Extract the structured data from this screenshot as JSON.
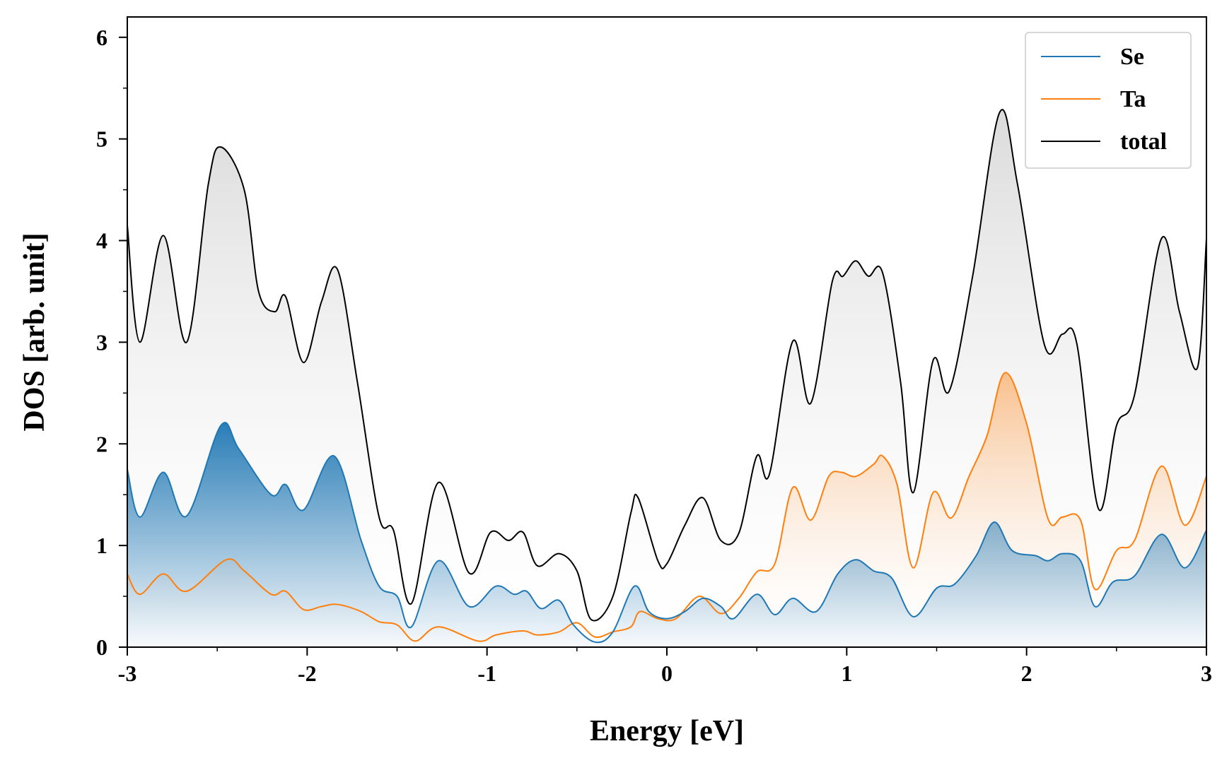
{
  "chart_data": {
    "type": "area",
    "title": "",
    "xlabel": "Energy [eV]",
    "ylabel": "DOS [arb. unit]",
    "xlim": [
      -3,
      3
    ],
    "ylim": [
      0,
      6.2
    ],
    "xticks": [
      -3,
      -2,
      -1,
      0,
      1,
      2,
      3
    ],
    "xtick_labels": [
      "-3",
      "-2",
      "-1",
      "0",
      "1",
      "2",
      "3"
    ],
    "yticks": [
      0,
      1,
      2,
      3,
      4,
      5,
      6
    ],
    "ytick_labels": [
      "0",
      "1",
      "2",
      "3",
      "4",
      "5",
      "6"
    ],
    "grid": false,
    "legend": "top-right",
    "series": [
      {
        "name": "Se",
        "color": "#1f77b4",
        "fill": "gradient",
        "points": [
          [
            -3.0,
            1.75
          ],
          [
            -2.93,
            1.28
          ],
          [
            -2.8,
            1.72
          ],
          [
            -2.67,
            1.29
          ],
          [
            -2.48,
            2.18
          ],
          [
            -2.38,
            1.95
          ],
          [
            -2.2,
            1.5
          ],
          [
            -2.12,
            1.6
          ],
          [
            -2.02,
            1.35
          ],
          [
            -1.85,
            1.88
          ],
          [
            -1.7,
            1.05
          ],
          [
            -1.6,
            0.6
          ],
          [
            -1.5,
            0.5
          ],
          [
            -1.42,
            0.2
          ],
          [
            -1.27,
            0.85
          ],
          [
            -1.1,
            0.4
          ],
          [
            -0.95,
            0.6
          ],
          [
            -0.85,
            0.52
          ],
          [
            -0.78,
            0.55
          ],
          [
            -0.7,
            0.38
          ],
          [
            -0.6,
            0.46
          ],
          [
            -0.52,
            0.22
          ],
          [
            -0.4,
            0.05
          ],
          [
            -0.3,
            0.15
          ],
          [
            -0.18,
            0.6
          ],
          [
            -0.1,
            0.35
          ],
          [
            0.0,
            0.28
          ],
          [
            0.1,
            0.35
          ],
          [
            0.2,
            0.48
          ],
          [
            0.3,
            0.4
          ],
          [
            0.37,
            0.28
          ],
          [
            0.5,
            0.52
          ],
          [
            0.6,
            0.32
          ],
          [
            0.7,
            0.48
          ],
          [
            0.83,
            0.35
          ],
          [
            0.95,
            0.72
          ],
          [
            1.05,
            0.86
          ],
          [
            1.15,
            0.75
          ],
          [
            1.25,
            0.68
          ],
          [
            1.37,
            0.3
          ],
          [
            1.5,
            0.58
          ],
          [
            1.6,
            0.62
          ],
          [
            1.72,
            0.9
          ],
          [
            1.82,
            1.23
          ],
          [
            1.92,
            0.95
          ],
          [
            2.05,
            0.9
          ],
          [
            2.12,
            0.85
          ],
          [
            2.2,
            0.92
          ],
          [
            2.3,
            0.85
          ],
          [
            2.38,
            0.4
          ],
          [
            2.48,
            0.64
          ],
          [
            2.6,
            0.7
          ],
          [
            2.75,
            1.11
          ],
          [
            2.88,
            0.78
          ],
          [
            3.0,
            1.15
          ]
        ]
      },
      {
        "name": "Ta",
        "color": "#ff7f0e",
        "fill": "gradient",
        "points": [
          [
            -3.0,
            0.72
          ],
          [
            -2.93,
            0.52
          ],
          [
            -2.8,
            0.72
          ],
          [
            -2.67,
            0.55
          ],
          [
            -2.45,
            0.86
          ],
          [
            -2.35,
            0.75
          ],
          [
            -2.2,
            0.52
          ],
          [
            -2.12,
            0.55
          ],
          [
            -2.02,
            0.37
          ],
          [
            -1.92,
            0.4
          ],
          [
            -1.83,
            0.42
          ],
          [
            -1.7,
            0.35
          ],
          [
            -1.6,
            0.25
          ],
          [
            -1.5,
            0.22
          ],
          [
            -1.4,
            0.06
          ],
          [
            -1.27,
            0.2
          ],
          [
            -1.05,
            0.06
          ],
          [
            -0.95,
            0.12
          ],
          [
            -0.8,
            0.16
          ],
          [
            -0.72,
            0.12
          ],
          [
            -0.6,
            0.15
          ],
          [
            -0.5,
            0.24
          ],
          [
            -0.4,
            0.1
          ],
          [
            -0.3,
            0.15
          ],
          [
            -0.2,
            0.2
          ],
          [
            -0.15,
            0.35
          ],
          [
            -0.05,
            0.28
          ],
          [
            0.05,
            0.28
          ],
          [
            0.18,
            0.5
          ],
          [
            0.3,
            0.33
          ],
          [
            0.4,
            0.48
          ],
          [
            0.5,
            0.74
          ],
          [
            0.6,
            0.82
          ],
          [
            0.7,
            1.57
          ],
          [
            0.8,
            1.25
          ],
          [
            0.9,
            1.68
          ],
          [
            0.97,
            1.72
          ],
          [
            1.05,
            1.68
          ],
          [
            1.15,
            1.8
          ],
          [
            1.2,
            1.88
          ],
          [
            1.28,
            1.6
          ],
          [
            1.37,
            0.78
          ],
          [
            1.48,
            1.52
          ],
          [
            1.58,
            1.27
          ],
          [
            1.68,
            1.68
          ],
          [
            1.78,
            2.08
          ],
          [
            1.88,
            2.7
          ],
          [
            2.0,
            2.2
          ],
          [
            2.12,
            1.26
          ],
          [
            2.2,
            1.28
          ],
          [
            2.3,
            1.25
          ],
          [
            2.38,
            0.57
          ],
          [
            2.5,
            0.95
          ],
          [
            2.6,
            1.05
          ],
          [
            2.75,
            1.78
          ],
          [
            2.88,
            1.2
          ],
          [
            3.0,
            1.68
          ]
        ]
      },
      {
        "name": "total",
        "color": "#000000",
        "fill": "gradient",
        "points": [
          [
            -3.0,
            4.15
          ],
          [
            -2.93,
            3.0
          ],
          [
            -2.8,
            4.05
          ],
          [
            -2.67,
            3.0
          ],
          [
            -2.55,
            4.55
          ],
          [
            -2.48,
            4.92
          ],
          [
            -2.35,
            4.5
          ],
          [
            -2.27,
            3.5
          ],
          [
            -2.18,
            3.3
          ],
          [
            -2.12,
            3.45
          ],
          [
            -2.02,
            2.8
          ],
          [
            -1.92,
            3.4
          ],
          [
            -1.83,
            3.71
          ],
          [
            -1.72,
            2.6
          ],
          [
            -1.6,
            1.28
          ],
          [
            -1.52,
            1.15
          ],
          [
            -1.42,
            0.43
          ],
          [
            -1.27,
            1.62
          ],
          [
            -1.1,
            0.73
          ],
          [
            -0.98,
            1.13
          ],
          [
            -0.88,
            1.05
          ],
          [
            -0.8,
            1.13
          ],
          [
            -0.72,
            0.8
          ],
          [
            -0.6,
            0.92
          ],
          [
            -0.5,
            0.75
          ],
          [
            -0.42,
            0.27
          ],
          [
            -0.3,
            0.5
          ],
          [
            -0.2,
            1.32
          ],
          [
            -0.16,
            1.47
          ],
          [
            -0.05,
            0.85
          ],
          [
            0.0,
            0.82
          ],
          [
            0.1,
            1.2
          ],
          [
            0.2,
            1.47
          ],
          [
            0.3,
            1.05
          ],
          [
            0.4,
            1.12
          ],
          [
            0.5,
            1.88
          ],
          [
            0.57,
            1.7
          ],
          [
            0.7,
            3.01
          ],
          [
            0.8,
            2.4
          ],
          [
            0.92,
            3.6
          ],
          [
            0.98,
            3.65
          ],
          [
            1.05,
            3.8
          ],
          [
            1.12,
            3.65
          ],
          [
            1.2,
            3.68
          ],
          [
            1.3,
            2.6
          ],
          [
            1.37,
            1.52
          ],
          [
            1.48,
            2.82
          ],
          [
            1.57,
            2.52
          ],
          [
            1.7,
            3.65
          ],
          [
            1.85,
            5.26
          ],
          [
            1.95,
            4.55
          ],
          [
            2.1,
            2.97
          ],
          [
            2.2,
            3.08
          ],
          [
            2.28,
            2.98
          ],
          [
            2.4,
            1.36
          ],
          [
            2.5,
            2.18
          ],
          [
            2.6,
            2.48
          ],
          [
            2.75,
            4.02
          ],
          [
            2.85,
            3.3
          ],
          [
            2.95,
            2.75
          ],
          [
            3.0,
            4.02
          ]
        ]
      }
    ]
  }
}
